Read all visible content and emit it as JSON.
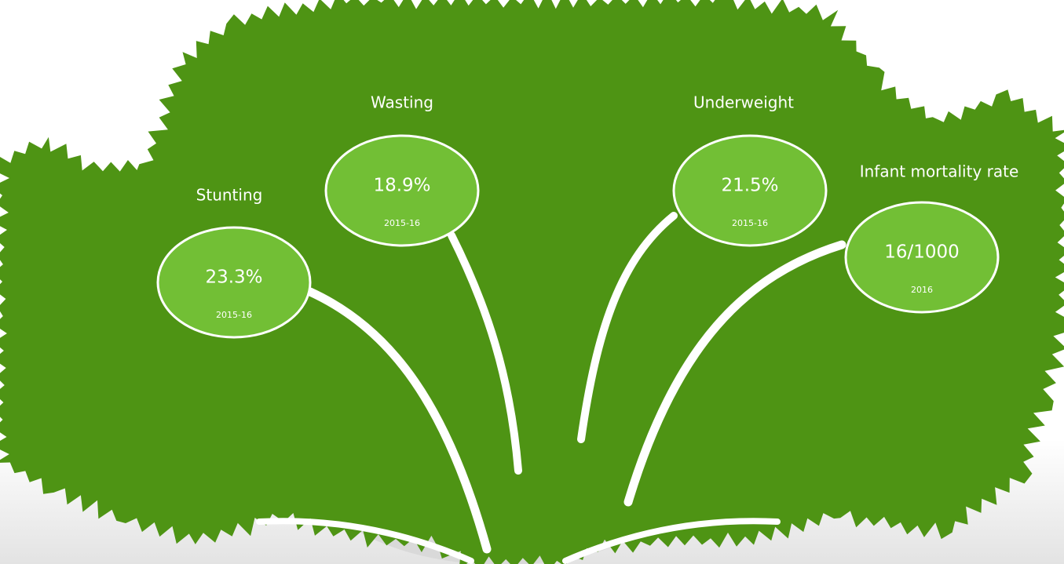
{
  "indicators": [
    {
      "label": "Stunting",
      "value": "23.3%",
      "period": "2015-16"
    },
    {
      "label": "Wasting",
      "value": "18.9%",
      "period": "2015-16"
    },
    {
      "label": "Underweight",
      "value": "21.5%",
      "period": "2015-16"
    },
    {
      "label": "Infant mortality rate",
      "value": "16/1000",
      "period": "2016"
    }
  ]
}
